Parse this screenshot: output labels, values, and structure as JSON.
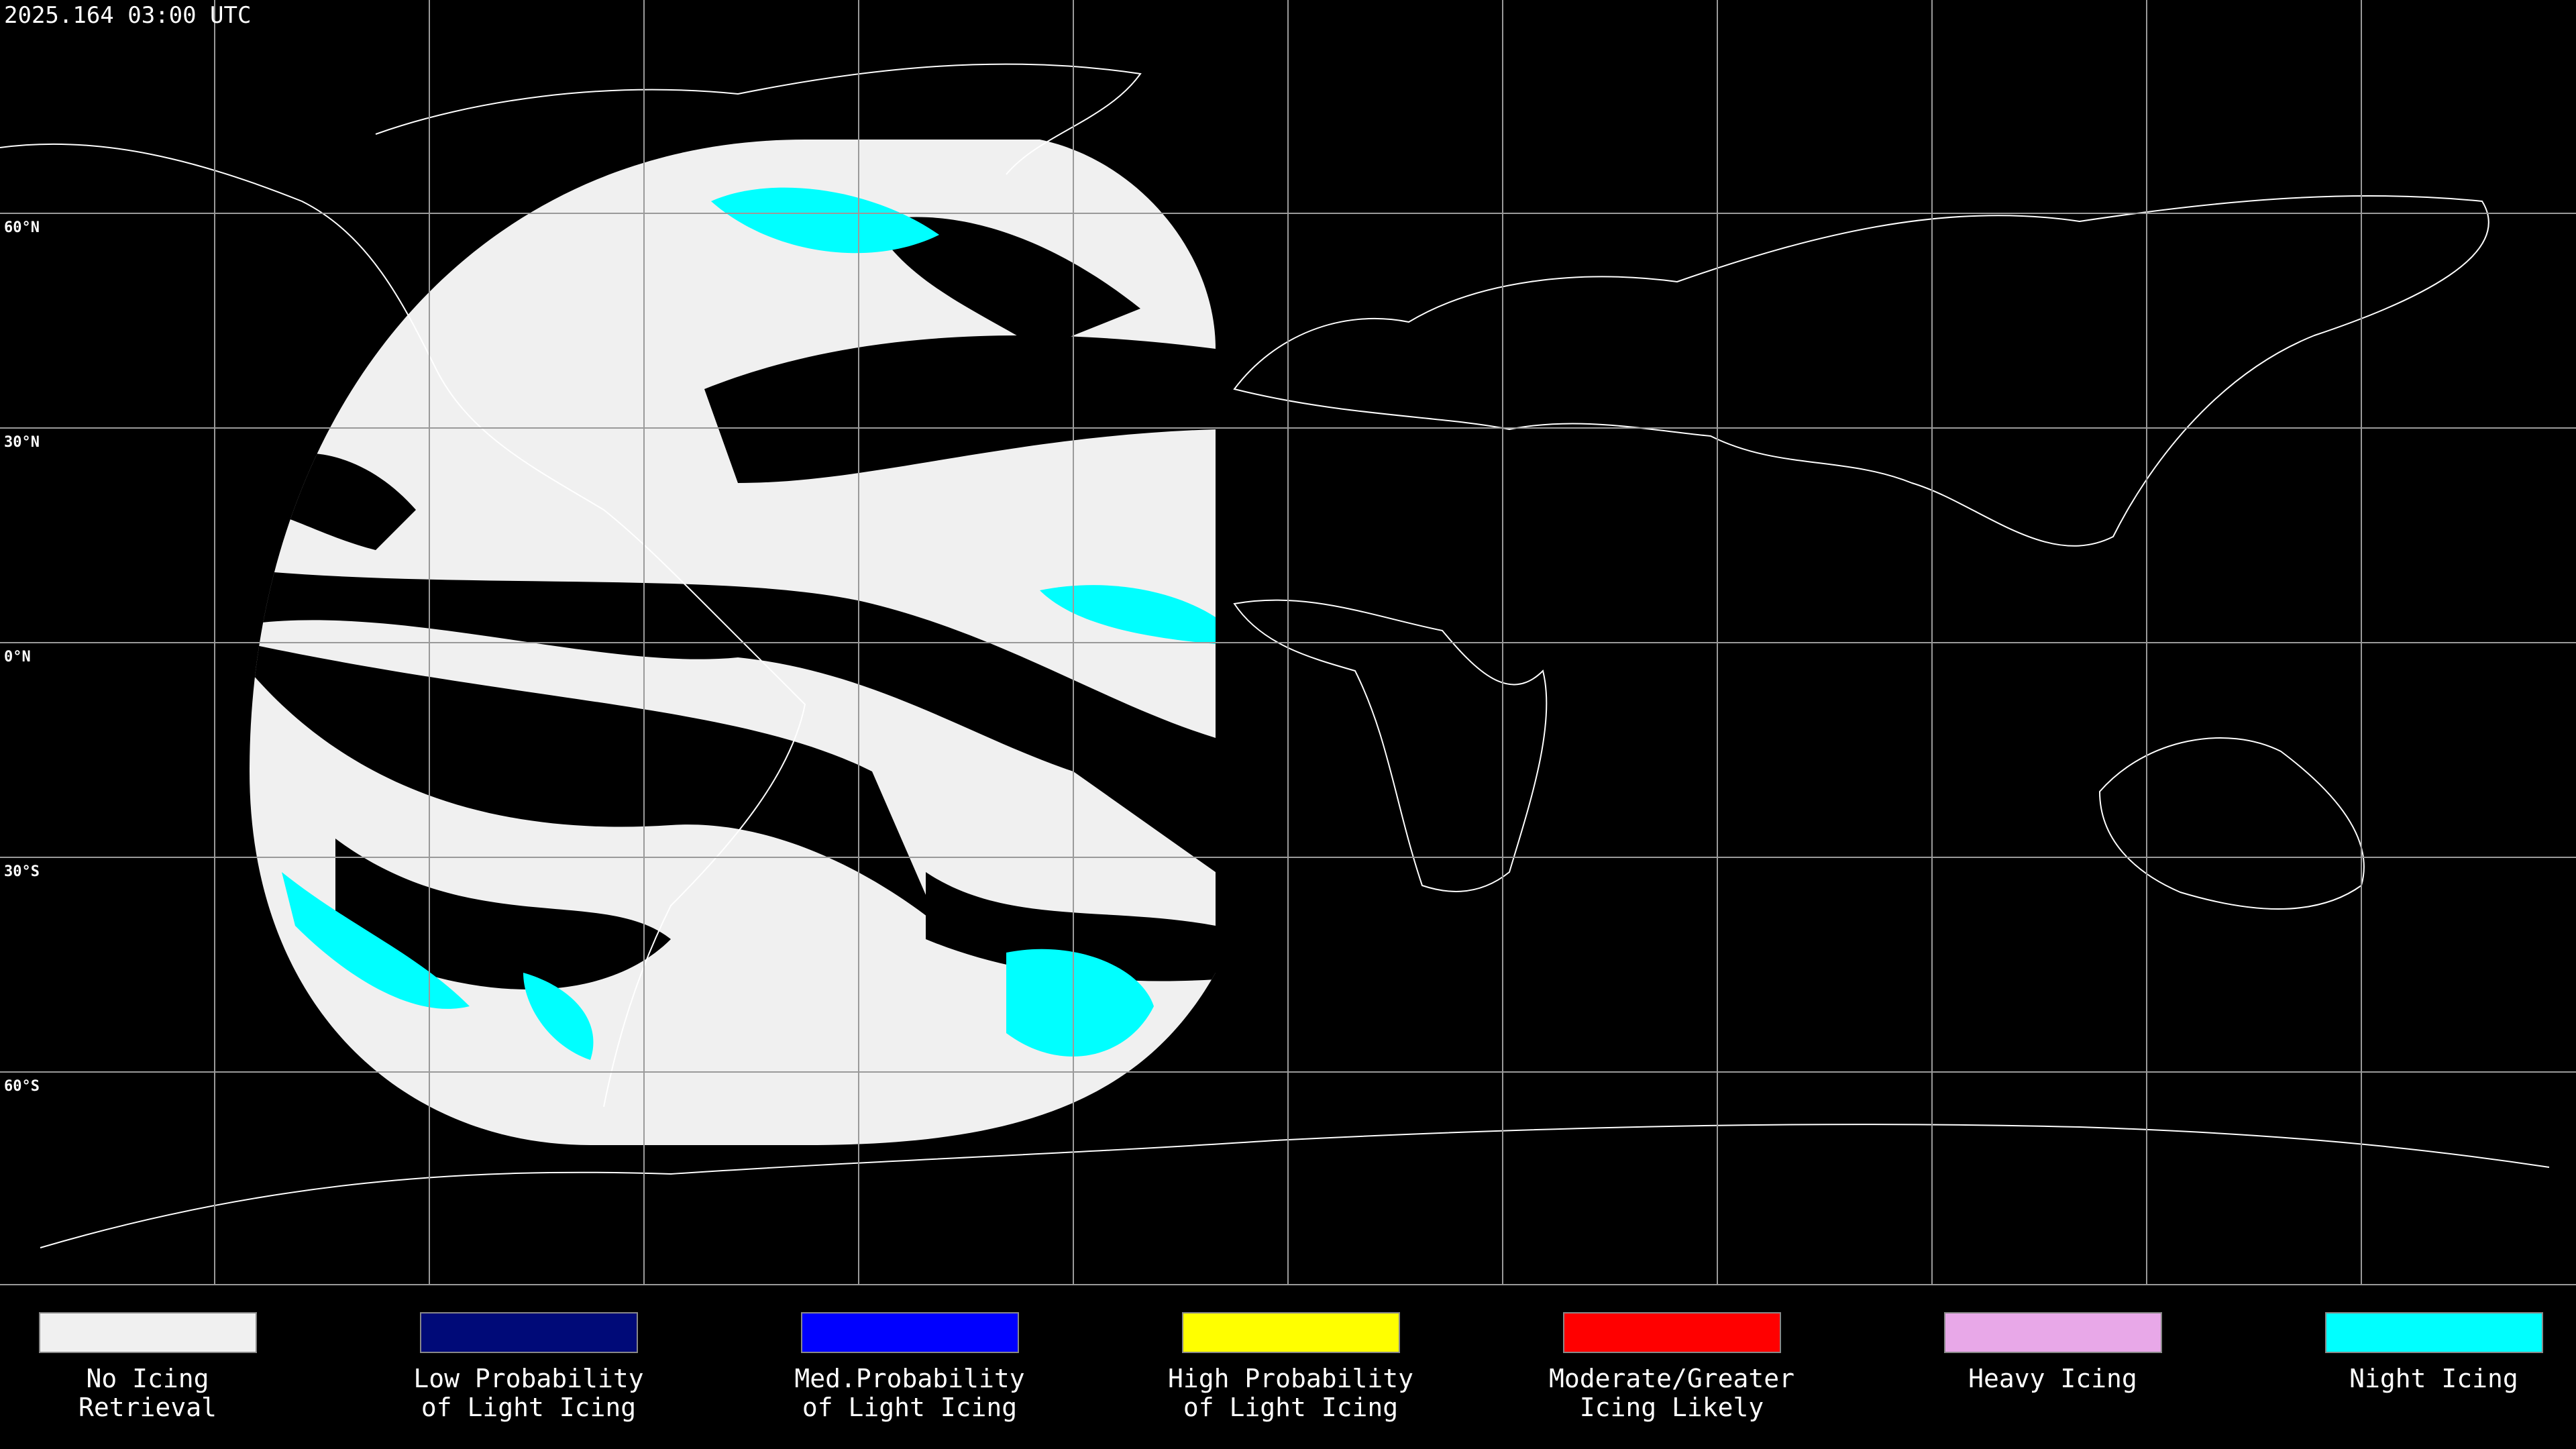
{
  "timestamp": "2025.164 03:00 UTC",
  "lat_labels": [
    "60°N",
    "30°N",
    "0°N",
    "30°S",
    "60°S"
  ],
  "legend": [
    {
      "lines": [
        "No Icing",
        "Retrieval"
      ],
      "color": "#f0f0f0"
    },
    {
      "lines": [
        "Low Probability",
        "of Light Icing"
      ],
      "color": "#000a78"
    },
    {
      "lines": [
        "Med.Probability",
        "of Light Icing"
      ],
      "color": "#0000ff"
    },
    {
      "lines": [
        "High Probability",
        "of Light Icing"
      ],
      "color": "#ffff00"
    },
    {
      "lines": [
        "Moderate/Greater",
        "Icing Likely"
      ],
      "color": "#ff0000"
    },
    {
      "lines": [
        "Heavy Icing"
      ],
      "color": "#e8a8e8"
    },
    {
      "lines": [
        "Night Icing"
      ],
      "color": "#00ffff"
    }
  ]
}
